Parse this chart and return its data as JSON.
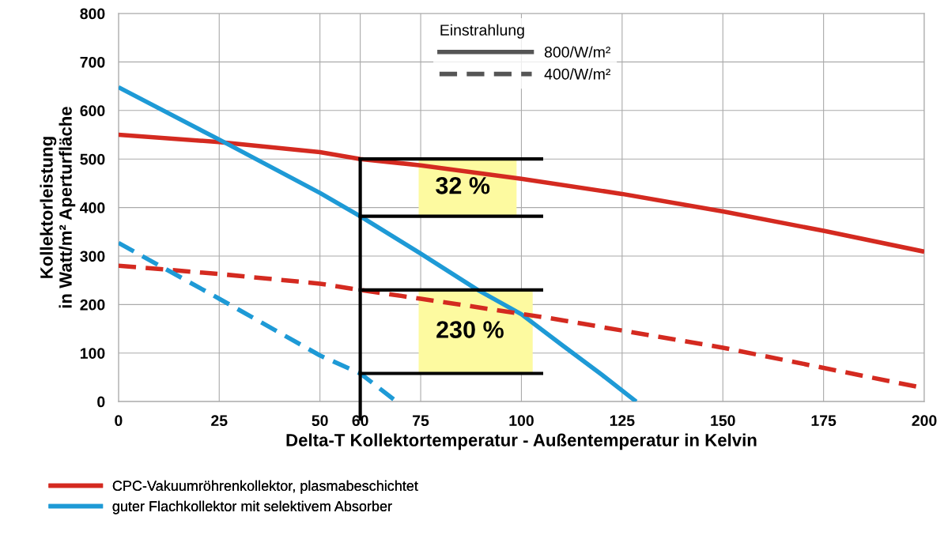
{
  "chart_data": {
    "type": "line",
    "xlabel": "Delta-T Kollektortemperatur - Außentemperatur in Kelvin",
    "ylabel": "Kollektorleistung\nin Watt/m² Aperturfläche",
    "legend_title": "Einstrahlung",
    "annotations": [
      "800/W/m²",
      "400/W/m²",
      "32 %",
      "230 %"
    ],
    "series": [
      {
        "name": "CPC-Vakuumröhrenkollektor, plasmabeschichtet",
        "color": "#d42a20",
        "line_style": "solid",
        "x": [
          0,
          25,
          50,
          60,
          75,
          100,
          125,
          150,
          175,
          200
        ],
        "values": [
          550,
          535,
          514,
          500,
          487,
          459,
          428,
          392,
          352,
          309
        ]
      },
      {
        "name": "guter Flachkollektor mit selektivem Absorber",
        "color": "#1e9ad6",
        "line_style": "solid",
        "x": [
          0,
          25,
          50,
          60,
          75,
          89,
          100,
          110,
          120,
          128.5
        ],
        "values": [
          648,
          540,
          430,
          382,
          305,
          231,
          180,
          117,
          55,
          0
        ]
      },
      {
        "color": "#d42a20",
        "line_style": "dashed",
        "x": [
          0,
          25,
          50,
          60,
          75,
          107,
          150,
          198
        ],
        "values": [
          280,
          263,
          243,
          230,
          212,
          172,
          111,
          31
        ]
      },
      {
        "color": "#1e9ad6",
        "line_style": "dashed",
        "x": [
          0,
          25,
          50,
          60,
          69
        ],
        "values": [
          327,
          212,
          95,
          58,
          0
        ]
      }
    ],
    "xlim": [
      0,
      200
    ],
    "xticks": [
      0,
      25,
      50,
      60,
      75,
      100,
      125,
      150,
      175,
      200
    ],
    "ylim": [
      0,
      800
    ],
    "yticks": [
      0,
      100,
      200,
      300,
      400,
      500,
      600,
      700,
      800
    ],
    "ref_lines": [
      {
        "axis": "x",
        "value": 60,
        "color": "#000000"
      }
    ],
    "grid": true,
    "legend": "bottom"
  }
}
